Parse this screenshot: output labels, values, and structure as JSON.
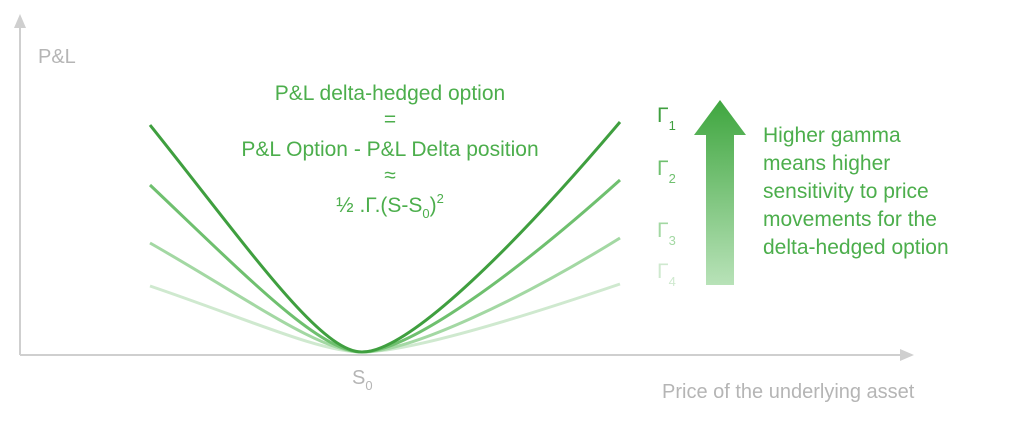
{
  "y_axis_label": "P&L",
  "x_axis_label": "Price of the underlying asset",
  "origin": {
    "symbol": "S",
    "subscript": "0"
  },
  "formula": {
    "line1": "P&L delta-hedged option",
    "line2": "=",
    "line3": "P&L Option - P&L Delta position",
    "line4": "≈",
    "line5": {
      "main": "½ .Γ.(S-S",
      "subscript": "0",
      "close": ")",
      "superscript": "2"
    }
  },
  "curve_labels": [
    {
      "symbol": "Γ",
      "subscript": "1"
    },
    {
      "symbol": "Γ",
      "subscript": "2"
    },
    {
      "symbol": "Γ",
      "subscript": "3"
    },
    {
      "symbol": "Γ",
      "subscript": "4"
    }
  ],
  "annotation": [
    "Higher gamma",
    "means higher",
    "sensitivity to price",
    "movements for the",
    "delta-hedged option"
  ]
}
